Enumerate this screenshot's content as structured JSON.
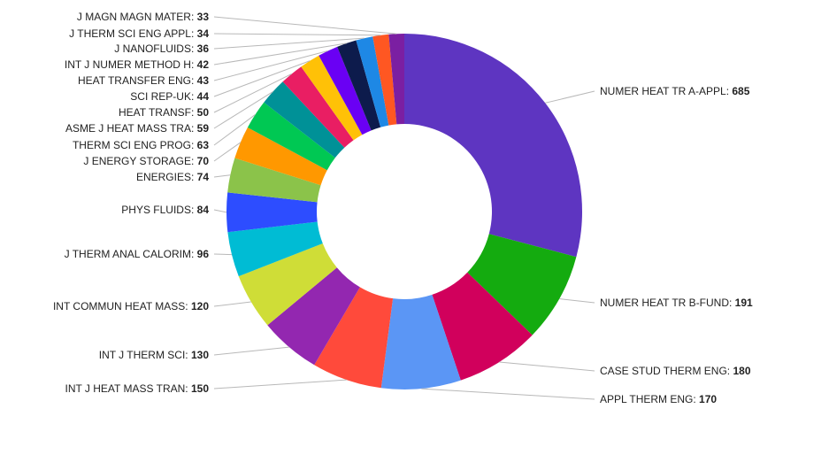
{
  "chart_data": {
    "type": "pie",
    "donut": true,
    "title": "",
    "legend": "none",
    "slices": [
      {
        "label": "NUMER HEAT TR A-APPL",
        "value": 685,
        "color": "#5e35c1"
      },
      {
        "label": "NUMER HEAT TR B-FUND",
        "value": 191,
        "color": "#14ab0f"
      },
      {
        "label": "CASE STUD THERM ENG",
        "value": 180,
        "color": "#d1005c"
      },
      {
        "label": "APPL THERM ENG",
        "value": 170,
        "color": "#5b96f5"
      },
      {
        "label": "INT J HEAT MASS TRAN",
        "value": 150,
        "color": "#ff4a3b"
      },
      {
        "label": "INT J THERM SCI",
        "value": 130,
        "color": "#9327b0"
      },
      {
        "label": "INT COMMUN HEAT MASS",
        "value": 120,
        "color": "#cfdd37"
      },
      {
        "label": "J THERM ANAL CALORIM",
        "value": 96,
        "color": "#00bcd4"
      },
      {
        "label": "PHYS FLUIDS",
        "value": 84,
        "color": "#2d4dff"
      },
      {
        "label": "ENERGIES",
        "value": 74,
        "color": "#8bc34a"
      },
      {
        "label": "J ENERGY STORAGE",
        "value": 70,
        "color": "#ff9800"
      },
      {
        "label": "THERM SCI ENG PROG",
        "value": 63,
        "color": "#00c853"
      },
      {
        "label": "ASME J HEAT MASS TRA",
        "value": 59,
        "color": "#009197"
      },
      {
        "label": "HEAT TRANSF",
        "value": 50,
        "color": "#e91e63"
      },
      {
        "label": "SCI REP-UK",
        "value": 44,
        "color": "#ffc107"
      },
      {
        "label": "HEAT TRANSFER ENG",
        "value": 43,
        "color": "#6a00f4"
      },
      {
        "label": "INT J NUMER METHOD H",
        "value": 42,
        "color": "#0d1b4c"
      },
      {
        "label": "J NANOFLUIDS",
        "value": 36,
        "color": "#1e88e5"
      },
      {
        "label": "J THERM SCI ENG APPL",
        "value": 34,
        "color": "#ff5722"
      },
      {
        "label": "J MAGN MAGN MATER",
        "value": 33,
        "color": "#7b1fa2"
      }
    ]
  }
}
